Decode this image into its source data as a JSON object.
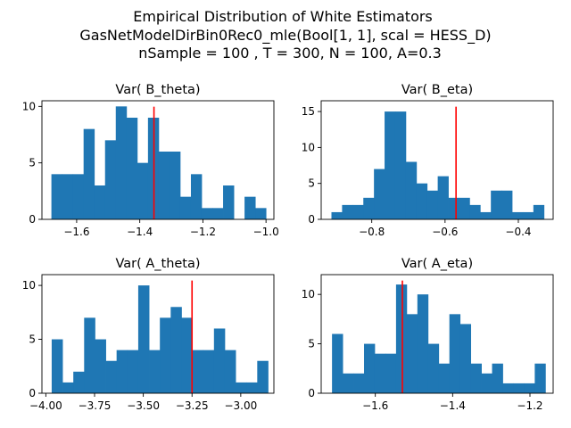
{
  "figure": {
    "title_lines": [
      "Empirical Distribution of White Estimators",
      "GasNetModelDirBin0Rec0_mle(Bool[1, 1], scal = HESS_D)",
      "nSample = 100 , T = 300, N = 100, A=0.3"
    ]
  },
  "colors": {
    "bar": "#1f77b4",
    "marker": "#ff0000",
    "axis": "#000000"
  },
  "chart_data": [
    {
      "type": "histogram",
      "title": "Var( B_theta)",
      "xlim": [
        -1.71,
        -0.975
      ],
      "ylim": [
        0,
        10.5
      ],
      "xticks": [
        -1.6,
        -1.4,
        -1.2,
        -1.0
      ],
      "xtick_labels": [
        "−1.6",
        "−1.4",
        "−1.2",
        "−1.0"
      ],
      "yticks": [
        0,
        5,
        10
      ],
      "bin_start": -1.68,
      "bin_width": 0.034,
      "counts": [
        4,
        4,
        4,
        8,
        3,
        7,
        10,
        9,
        5,
        9,
        6,
        6,
        2,
        4,
        1,
        1,
        3,
        0,
        2,
        1
      ],
      "marker_x": -1.355
    },
    {
      "type": "histogram",
      "title": "Var( B_eta)",
      "xlim": [
        -0.938,
        -0.305
      ],
      "ylim": [
        0,
        16.5
      ],
      "xticks": [
        -0.8,
        -0.6,
        -0.4
      ],
      "xtick_labels": [
        "−0.8",
        "−0.6",
        "−0.4"
      ],
      "yticks": [
        0,
        5,
        10,
        15
      ],
      "bin_start": -0.91,
      "bin_width": 0.029,
      "counts": [
        1,
        2,
        2,
        3,
        7,
        15,
        15,
        8,
        5,
        4,
        6,
        3,
        3,
        2,
        1,
        4,
        4,
        1,
        1,
        2
      ],
      "marker_x": -0.57
    },
    {
      "type": "histogram",
      "title": "Var( A_theta)",
      "xlim": [
        -4.02,
        -2.83
      ],
      "ylim": [
        0,
        11
      ],
      "xticks": [
        -4.0,
        -3.75,
        -3.5,
        -3.25,
        -3.0
      ],
      "xtick_labels": [
        "−4.00",
        "−3.75",
        "−3.50",
        "−3.25",
        "−3.00"
      ],
      "yticks": [
        0,
        5,
        10
      ],
      "bin_start": -3.97,
      "bin_width": 0.0555,
      "counts": [
        5,
        1,
        2,
        7,
        5,
        3,
        4,
        4,
        10,
        4,
        7,
        8,
        7,
        4,
        4,
        6,
        4,
        1,
        1,
        3
      ],
      "marker_x": -3.25
    },
    {
      "type": "histogram",
      "title": "Var( A_eta)",
      "xlim": [
        -1.74,
        -1.14
      ],
      "ylim": [
        0,
        12
      ],
      "xticks": [
        -1.6,
        -1.4,
        -1.2
      ],
      "xtick_labels": [
        "−1.6",
        "−1.4",
        "−1.2"
      ],
      "yticks": [
        0,
        5,
        10
      ],
      "bin_start": -1.712,
      "bin_width": 0.0276,
      "counts": [
        6,
        2,
        2,
        5,
        4,
        4,
        11,
        8,
        10,
        5,
        3,
        8,
        7,
        3,
        2,
        3,
        1,
        1,
        1,
        3
      ],
      "marker_x": -1.53
    }
  ]
}
